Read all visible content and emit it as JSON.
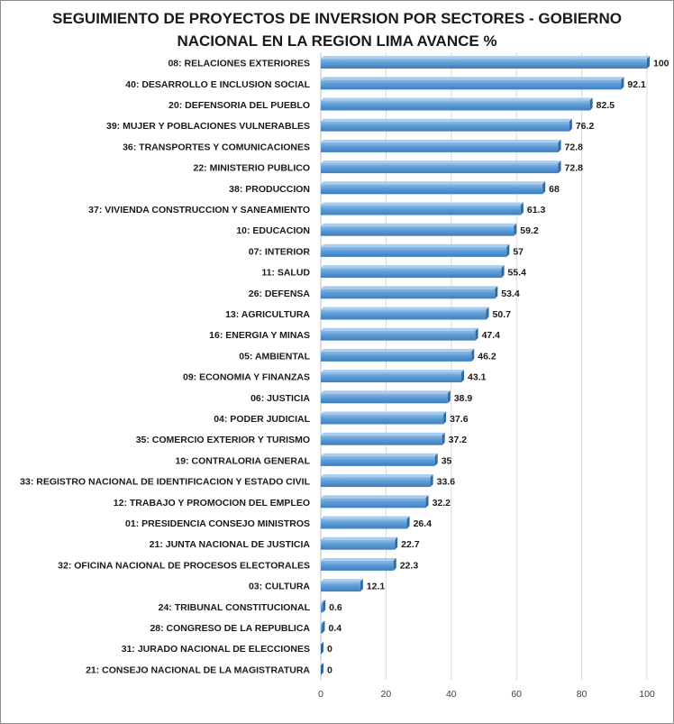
{
  "chart_data": {
    "type": "bar",
    "orientation": "horizontal",
    "title_line1": "SEGUIMIENTO DE PROYECTOS DE INVERSION POR SECTORES - GOBIERNO",
    "title_line2": "NACIONAL EN LA REGION LIMA AVANCE %",
    "xlim": [
      0,
      100
    ],
    "x_ticks": [
      "0",
      "20",
      "40",
      "60",
      "80",
      "100"
    ],
    "grid": "vertical",
    "bar_color": "#5b9bd5",
    "categories": [
      "08: RELACIONES EXTERIORES",
      "40: DESARROLLO E INCLUSION SOCIAL",
      "20: DEFENSORIA DEL PUEBLO",
      "39: MUJER Y POBLACIONES VULNERABLES",
      "36: TRANSPORTES Y COMUNICACIONES",
      "22: MINISTERIO PUBLICO",
      "38: PRODUCCION",
      "37: VIVIENDA CONSTRUCCION Y SANEAMIENTO",
      "10: EDUCACION",
      "07: INTERIOR",
      "11: SALUD",
      "26: DEFENSA",
      "13: AGRICULTURA",
      "16: ENERGIA Y MINAS",
      "05: AMBIENTAL",
      "09: ECONOMIA Y FINANZAS",
      "06: JUSTICIA",
      "04: PODER JUDICIAL",
      "35: COMERCIO EXTERIOR Y TURISMO",
      "19: CONTRALORIA GENERAL",
      "33: REGISTRO NACIONAL DE IDENTIFICACION Y ESTADO CIVIL",
      "12: TRABAJO Y PROMOCION DEL EMPLEO",
      "01: PRESIDENCIA CONSEJO MINISTROS",
      "21: JUNTA NACIONAL DE JUSTICIA",
      "32: OFICINA NACIONAL DE PROCESOS ELECTORALES",
      "03: CULTURA",
      "24: TRIBUNAL CONSTITUCIONAL",
      "28: CONGRESO DE LA REPUBLICA",
      "31: JURADO NACIONAL DE ELECCIONES",
      "21: CONSEJO NACIONAL DE LA MAGISTRATURA"
    ],
    "values": [
      100,
      92.1,
      82.5,
      76.2,
      72.8,
      72.8,
      68,
      61.3,
      59.2,
      57,
      55.4,
      53.4,
      50.7,
      47.4,
      46.2,
      43.1,
      38.9,
      37.6,
      37.2,
      35,
      33.6,
      32.2,
      26.4,
      22.7,
      22.3,
      12.1,
      0.6,
      0.4,
      0,
      0
    ],
    "value_labels": [
      "100",
      "92.1",
      "82.5",
      "76.2",
      "72.8",
      "72.8",
      "68",
      "61.3",
      "59.2",
      "57",
      "55.4",
      "53.4",
      "50.7",
      "47.4",
      "46.2",
      "43.1",
      "38.9",
      "37.6",
      "37.2",
      "35",
      "33.6",
      "32.2",
      "26.4",
      "22.7",
      "22.3",
      "12.1",
      "0.6",
      "0.4",
      "0",
      "0"
    ]
  }
}
